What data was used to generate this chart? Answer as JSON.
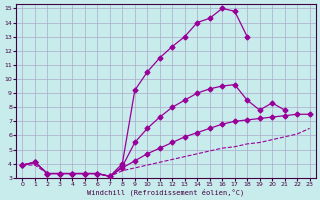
{
  "background_color": "#c8ecec",
  "line_color": "#990099",
  "grid_color": "#aaaacc",
  "xlabel": "Windchill (Refroidissement éolien,°C)",
  "xlim": [
    -0.5,
    23.5
  ],
  "ylim": [
    3,
    15.3
  ],
  "xticks": [
    0,
    1,
    2,
    3,
    4,
    5,
    6,
    7,
    8,
    9,
    10,
    11,
    12,
    13,
    14,
    15,
    16,
    17,
    18,
    19,
    20,
    21,
    22,
    23
  ],
  "yticks": [
    3,
    4,
    5,
    6,
    7,
    8,
    9,
    10,
    11,
    12,
    13,
    14,
    15
  ],
  "series1_x": [
    0,
    1,
    2,
    3,
    4,
    5,
    6,
    7,
    8,
    9,
    10,
    11,
    12,
    13,
    14,
    15,
    16,
    17,
    18
  ],
  "series1_y": [
    3.9,
    4.1,
    3.3,
    3.3,
    3.3,
    3.3,
    3.3,
    3.1,
    4.0,
    9.2,
    10.5,
    11.5,
    12.3,
    13.0,
    14.0,
    14.3,
    15.0,
    14.8,
    13.0
  ],
  "series2_x": [
    0,
    1,
    2,
    3,
    4,
    5,
    6,
    7,
    8,
    9,
    10,
    11,
    12,
    13,
    14,
    15,
    16,
    17,
    18,
    19,
    20,
    21
  ],
  "series2_y": [
    3.9,
    4.1,
    3.3,
    3.3,
    3.3,
    3.3,
    3.3,
    3.1,
    3.8,
    5.5,
    6.5,
    7.3,
    8.0,
    8.5,
    9.0,
    9.3,
    9.5,
    9.6,
    8.5,
    7.8,
    8.3,
    7.8
  ],
  "series3_x": [
    0,
    1,
    2,
    3,
    4,
    5,
    6,
    7,
    8,
    9,
    10,
    11,
    12,
    13,
    14,
    15,
    16,
    17,
    18,
    19,
    20,
    21,
    22,
    23
  ],
  "series3_y": [
    3.9,
    4.1,
    3.3,
    3.3,
    3.3,
    3.3,
    3.3,
    3.1,
    3.7,
    4.2,
    4.7,
    5.1,
    5.5,
    5.9,
    6.2,
    6.5,
    6.8,
    7.0,
    7.1,
    7.2,
    7.3,
    7.4,
    7.5,
    7.5
  ],
  "series4_x": [
    0,
    1,
    2,
    3,
    4,
    5,
    6,
    7,
    8,
    9,
    10,
    11,
    12,
    13,
    14,
    15,
    16,
    17,
    18,
    19,
    20,
    21,
    22,
    23
  ],
  "series4_y": [
    3.9,
    3.9,
    3.3,
    3.3,
    3.3,
    3.3,
    3.3,
    3.1,
    3.5,
    3.7,
    3.9,
    4.1,
    4.3,
    4.5,
    4.7,
    4.9,
    5.1,
    5.2,
    5.4,
    5.5,
    5.7,
    5.9,
    6.1,
    6.5
  ]
}
